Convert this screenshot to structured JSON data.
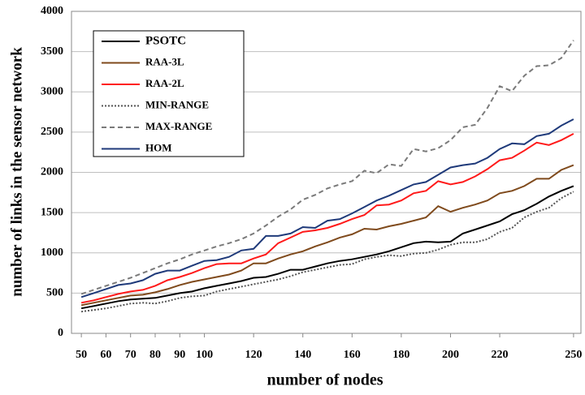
{
  "chart_data": {
    "type": "line",
    "xlabel": "number of nodes",
    "ylabel": "number of links in the sensor  network",
    "x": [
      50,
      55,
      60,
      65,
      70,
      75,
      80,
      85,
      90,
      95,
      100,
      105,
      110,
      115,
      120,
      125,
      130,
      135,
      140,
      145,
      150,
      155,
      160,
      165,
      170,
      175,
      180,
      185,
      190,
      195,
      200,
      205,
      210,
      215,
      220,
      225,
      230,
      235,
      240,
      245,
      250
    ],
    "xlim": [
      46,
      253
    ],
    "xticks": [
      50,
      60,
      70,
      80,
      90,
      100,
      120,
      140,
      160,
      180,
      200,
      220,
      250
    ],
    "ylim": [
      0,
      4000
    ],
    "yticks": [
      0,
      500,
      1000,
      1500,
      2000,
      2500,
      3000,
      3500,
      4000
    ],
    "grid": true,
    "legend": "upper-left",
    "series": [
      {
        "name": "PSOTC",
        "color": "#000000",
        "dash": "solid",
        "values": [
          310,
          340,
          370,
          400,
          420,
          430,
          440,
          470,
          500,
          520,
          560,
          590,
          620,
          650,
          690,
          700,
          740,
          790,
          790,
          830,
          870,
          900,
          920,
          950,
          980,
          1020,
          1070,
          1120,
          1140,
          1130,
          1140,
          1240,
          1290,
          1340,
          1390,
          1480,
          1530,
          1610,
          1700,
          1770,
          1830
        ]
      },
      {
        "name": "RAA-3L",
        "color": "#7f4a1c",
        "dash": "solid",
        "values": [
          350,
          380,
          410,
          440,
          470,
          480,
          510,
          550,
          600,
          640,
          670,
          700,
          730,
          780,
          870,
          870,
          930,
          980,
          1020,
          1080,
          1130,
          1190,
          1230,
          1300,
          1290,
          1330,
          1360,
          1400,
          1440,
          1580,
          1510,
          1560,
          1600,
          1650,
          1740,
          1770,
          1830,
          1920,
          1920,
          2030,
          2090
        ]
      },
      {
        "name": "RAA-2L",
        "color": "#ff1a1a",
        "dash": "solid",
        "values": [
          380,
          410,
          450,
          490,
          520,
          540,
          590,
          660,
          700,
          750,
          810,
          860,
          870,
          870,
          930,
          980,
          1120,
          1190,
          1260,
          1280,
          1310,
          1360,
          1420,
          1470,
          1590,
          1600,
          1650,
          1740,
          1770,
          1890,
          1850,
          1880,
          1950,
          2040,
          2150,
          2180,
          2270,
          2370,
          2340,
          2400,
          2480
        ]
      },
      {
        "name": "MIN-RANGE",
        "color": "#555555",
        "dash": "dotted",
        "values": [
          270,
          290,
          310,
          340,
          370,
          380,
          370,
          400,
          440,
          460,
          470,
          520,
          550,
          580,
          610,
          640,
          670,
          710,
          760,
          790,
          820,
          850,
          860,
          920,
          950,
          970,
          960,
          990,
          1000,
          1040,
          1100,
          1130,
          1130,
          1170,
          1260,
          1310,
          1440,
          1510,
          1560,
          1680,
          1760
        ]
      },
      {
        "name": "MAX-RANGE",
        "color": "#7a7a7a",
        "dash": "dashed",
        "values": [
          490,
          540,
          590,
          640,
          690,
          750,
          810,
          870,
          920,
          980,
          1030,
          1080,
          1120,
          1170,
          1240,
          1340,
          1450,
          1540,
          1660,
          1720,
          1800,
          1850,
          1890,
          2020,
          1990,
          2100,
          2080,
          2290,
          2260,
          2300,
          2400,
          2560,
          2590,
          2800,
          3070,
          3010,
          3200,
          3320,
          3330,
          3420,
          3640
        ]
      },
      {
        "name": "HOM",
        "color": "#1f3a7a",
        "dash": "solid",
        "values": [
          450,
          500,
          550,
          600,
          620,
          660,
          740,
          780,
          780,
          840,
          900,
          910,
          950,
          1030,
          1050,
          1210,
          1210,
          1240,
          1320,
          1310,
          1400,
          1420,
          1490,
          1570,
          1650,
          1710,
          1780,
          1850,
          1880,
          1970,
          2060,
          2090,
          2110,
          2180,
          2290,
          2360,
          2350,
          2450,
          2480,
          2580,
          2660
        ]
      }
    ]
  }
}
